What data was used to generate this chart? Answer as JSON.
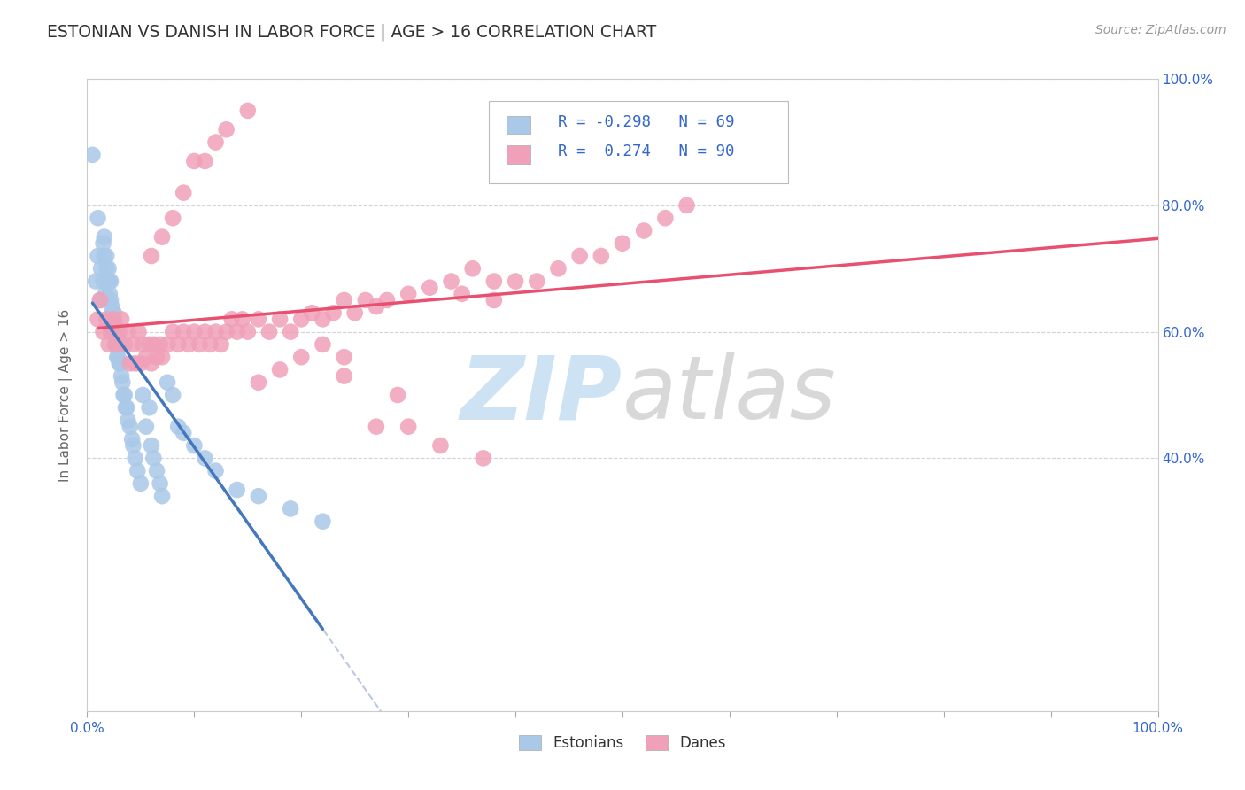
{
  "title": "ESTONIAN VS DANISH IN LABOR FORCE | AGE > 16 CORRELATION CHART",
  "source_text": "Source: ZipAtlas.com",
  "ylabel": "In Labor Force | Age > 16",
  "legend_R": [
    -0.298,
    0.274
  ],
  "legend_N": [
    69,
    90
  ],
  "estonian_color": "#aac8e8",
  "dane_color": "#f0a0b8",
  "estonian_line_color": "#4477bb",
  "dane_line_color": "#e85070",
  "dashed_line_color": "#aabbdd",
  "text_color": "#3366cc",
  "background_color": "#ffffff",
  "watermark_zip_color": "#b8d8f0",
  "watermark_atlas_color": "#c8c8c8",
  "xlim": [
    0.0,
    1.0
  ],
  "ylim": [
    0.0,
    1.0
  ],
  "yticks": [
    0.4,
    0.6,
    0.8,
    1.0
  ],
  "yticklabels": [
    "40.0%",
    "60.0%",
    "80.0%",
    "100.0%"
  ],
  "estonian_x": [
    0.005,
    0.008,
    0.01,
    0.01,
    0.012,
    0.013,
    0.015,
    0.015,
    0.016,
    0.016,
    0.017,
    0.018,
    0.018,
    0.019,
    0.02,
    0.02,
    0.021,
    0.021,
    0.022,
    0.022,
    0.022,
    0.023,
    0.023,
    0.024,
    0.024,
    0.025,
    0.025,
    0.026,
    0.026,
    0.027,
    0.027,
    0.028,
    0.028,
    0.029,
    0.03,
    0.03,
    0.031,
    0.032,
    0.033,
    0.034,
    0.035,
    0.036,
    0.037,
    0.038,
    0.04,
    0.042,
    0.043,
    0.045,
    0.047,
    0.05,
    0.052,
    0.055,
    0.058,
    0.06,
    0.062,
    0.065,
    0.068,
    0.07,
    0.075,
    0.08,
    0.085,
    0.09,
    0.1,
    0.11,
    0.12,
    0.14,
    0.16,
    0.19,
    0.22
  ],
  "estonian_y": [
    0.88,
    0.68,
    0.72,
    0.78,
    0.65,
    0.7,
    0.74,
    0.68,
    0.72,
    0.75,
    0.66,
    0.7,
    0.72,
    0.68,
    0.65,
    0.7,
    0.66,
    0.68,
    0.62,
    0.65,
    0.68,
    0.62,
    0.64,
    0.6,
    0.63,
    0.6,
    0.63,
    0.58,
    0.61,
    0.58,
    0.6,
    0.56,
    0.59,
    0.56,
    0.55,
    0.58,
    0.55,
    0.53,
    0.52,
    0.5,
    0.5,
    0.48,
    0.48,
    0.46,
    0.45,
    0.43,
    0.42,
    0.4,
    0.38,
    0.36,
    0.5,
    0.45,
    0.48,
    0.42,
    0.4,
    0.38,
    0.36,
    0.34,
    0.52,
    0.5,
    0.45,
    0.44,
    0.42,
    0.4,
    0.38,
    0.35,
    0.34,
    0.32,
    0.3
  ],
  "dane_x": [
    0.01,
    0.012,
    0.015,
    0.018,
    0.02,
    0.022,
    0.025,
    0.028,
    0.03,
    0.032,
    0.035,
    0.038,
    0.04,
    0.043,
    0.045,
    0.048,
    0.05,
    0.052,
    0.055,
    0.058,
    0.06,
    0.062,
    0.065,
    0.068,
    0.07,
    0.075,
    0.08,
    0.085,
    0.09,
    0.095,
    0.1,
    0.105,
    0.11,
    0.115,
    0.12,
    0.125,
    0.13,
    0.135,
    0.14,
    0.145,
    0.15,
    0.16,
    0.17,
    0.18,
    0.19,
    0.2,
    0.21,
    0.22,
    0.23,
    0.24,
    0.25,
    0.26,
    0.27,
    0.28,
    0.3,
    0.32,
    0.34,
    0.36,
    0.38,
    0.4,
    0.42,
    0.44,
    0.46,
    0.48,
    0.5,
    0.52,
    0.54,
    0.56,
    0.35,
    0.38,
    0.16,
    0.18,
    0.2,
    0.22,
    0.24,
    0.06,
    0.07,
    0.08,
    0.09,
    0.1,
    0.11,
    0.12,
    0.13,
    0.15,
    0.27,
    0.3,
    0.33,
    0.37,
    0.29,
    0.24
  ],
  "dane_y": [
    0.62,
    0.65,
    0.6,
    0.62,
    0.58,
    0.6,
    0.62,
    0.58,
    0.6,
    0.62,
    0.58,
    0.6,
    0.55,
    0.58,
    0.55,
    0.6,
    0.55,
    0.58,
    0.56,
    0.58,
    0.55,
    0.58,
    0.56,
    0.58,
    0.56,
    0.58,
    0.6,
    0.58,
    0.6,
    0.58,
    0.6,
    0.58,
    0.6,
    0.58,
    0.6,
    0.58,
    0.6,
    0.62,
    0.6,
    0.62,
    0.6,
    0.62,
    0.6,
    0.62,
    0.6,
    0.62,
    0.63,
    0.62,
    0.63,
    0.65,
    0.63,
    0.65,
    0.64,
    0.65,
    0.66,
    0.67,
    0.68,
    0.7,
    0.65,
    0.68,
    0.68,
    0.7,
    0.72,
    0.72,
    0.74,
    0.76,
    0.78,
    0.8,
    0.66,
    0.68,
    0.52,
    0.54,
    0.56,
    0.58,
    0.56,
    0.72,
    0.75,
    0.78,
    0.82,
    0.87,
    0.87,
    0.9,
    0.92,
    0.95,
    0.45,
    0.45,
    0.42,
    0.4,
    0.5,
    0.53
  ]
}
